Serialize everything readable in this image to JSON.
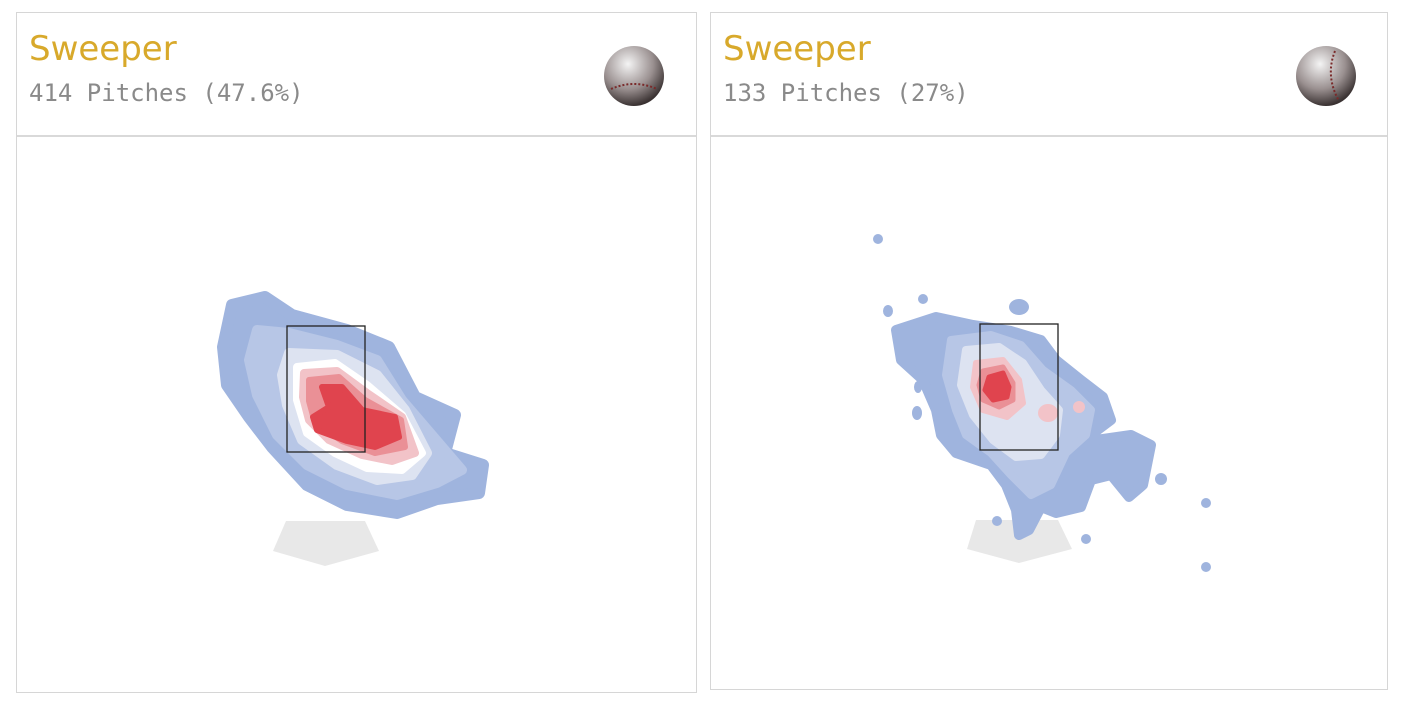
{
  "cards": [
    {
      "title": "Sweeper",
      "subtitle": "414 Pitches (47.6%)"
    },
    {
      "title": "Sweeper",
      "subtitle": "133 Pitches (27%)"
    }
  ]
}
